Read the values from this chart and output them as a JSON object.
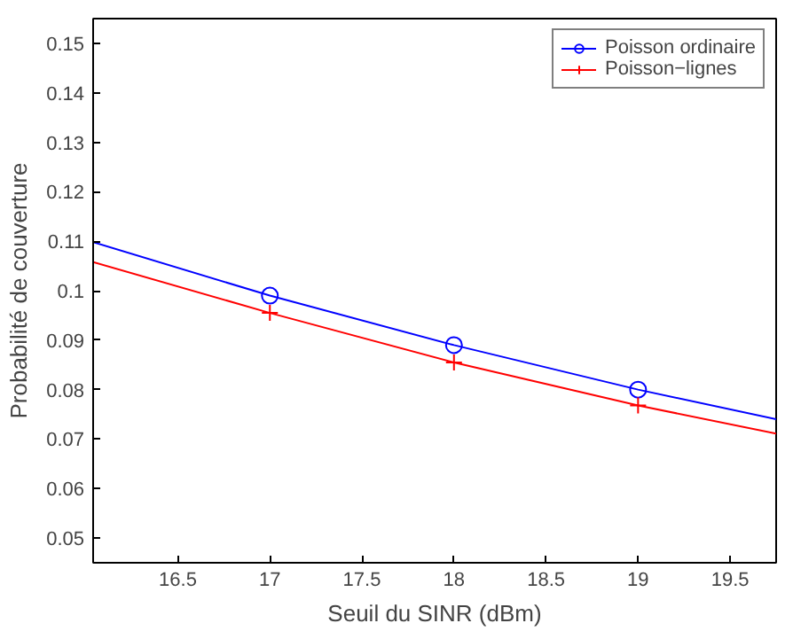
{
  "chart_data": {
    "type": "line",
    "xlabel": "Seuil du SINR (dBm)",
    "ylabel": "Probabilité de couverture",
    "x": [
      16.04,
      17,
      18,
      19,
      19.75
    ],
    "series": [
      {
        "name": "Poisson ordinaire",
        "color": "#0000ff",
        "marker": "circle",
        "values": [
          0.1098,
          0.099,
          0.089,
          0.08,
          0.074
        ]
      },
      {
        "name": "Poisson−lignes",
        "color": "#ff0000",
        "marker": "cross",
        "values": [
          0.1058,
          0.0955,
          0.0855,
          0.0768,
          0.0711
        ]
      }
    ],
    "xlim": [
      16.04,
      19.75
    ],
    "ylim": [
      0.045,
      0.155
    ],
    "xticks": [
      16.5,
      17,
      17.5,
      18,
      18.5,
      19,
      19.5
    ],
    "yticks": [
      0.05,
      0.06,
      0.07,
      0.08,
      0.09,
      0.1,
      0.11,
      0.12,
      0.13,
      0.14,
      0.15
    ],
    "grid": false,
    "legend": "top right",
    "line_style": "solid"
  }
}
